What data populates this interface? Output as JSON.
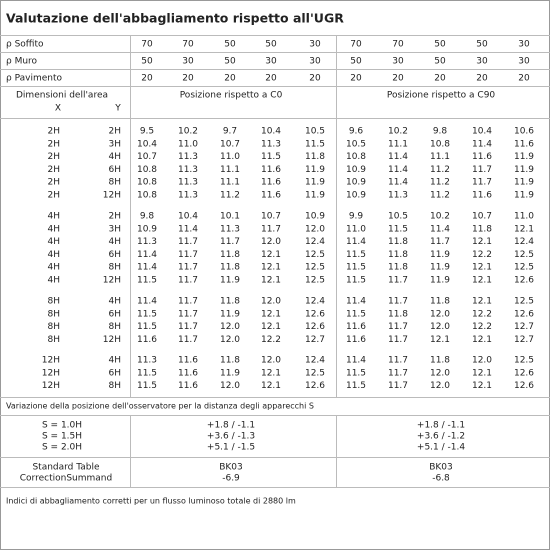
{
  "title": "Valutazione dell'abbagliamento rispetto all'UGR",
  "reflectances": [
    {
      "label": "ρ Soffito",
      "values": [
        "70",
        "70",
        "50",
        "50",
        "30",
        "70",
        "70",
        "50",
        "50",
        "30"
      ]
    },
    {
      "label": "ρ Muro",
      "values": [
        "50",
        "30",
        "50",
        "30",
        "30",
        "50",
        "30",
        "50",
        "30",
        "30"
      ]
    },
    {
      "label": "ρ Pavimento",
      "values": [
        "20",
        "20",
        "20",
        "20",
        "20",
        "20",
        "20",
        "20",
        "20",
        "20"
      ]
    }
  ],
  "header": {
    "dimensions": "Dimensioni dell'area",
    "x": "X",
    "y": "Y",
    "c0": "Posizione rispetto a C0",
    "c90": "Posizione rispetto a C90"
  },
  "groups": [
    {
      "rows": [
        {
          "x": "2H",
          "y": "2H",
          "values": [
            "9.5",
            "10.2",
            "9.7",
            "10.4",
            "10.5",
            "9.6",
            "10.2",
            "9.8",
            "10.4",
            "10.6"
          ]
        },
        {
          "x": "2H",
          "y": "3H",
          "values": [
            "10.4",
            "11.0",
            "10.7",
            "11.3",
            "11.5",
            "10.5",
            "11.1",
            "10.8",
            "11.4",
            "11.6"
          ]
        },
        {
          "x": "2H",
          "y": "4H",
          "values": [
            "10.7",
            "11.3",
            "11.0",
            "11.5",
            "11.8",
            "10.8",
            "11.4",
            "11.1",
            "11.6",
            "11.9"
          ]
        },
        {
          "x": "2H",
          "y": "6H",
          "values": [
            "10.8",
            "11.3",
            "11.1",
            "11.6",
            "11.9",
            "10.9",
            "11.4",
            "11.2",
            "11.7",
            "11.9"
          ]
        },
        {
          "x": "2H",
          "y": "8H",
          "values": [
            "10.8",
            "11.3",
            "11.1",
            "11.6",
            "11.9",
            "10.9",
            "11.4",
            "11.2",
            "11.7",
            "11.9"
          ]
        },
        {
          "x": "2H",
          "y": "12H",
          "values": [
            "10.8",
            "11.3",
            "11.2",
            "11.6",
            "11.9",
            "10.9",
            "11.3",
            "11.2",
            "11.6",
            "11.9"
          ]
        }
      ]
    },
    {
      "rows": [
        {
          "x": "4H",
          "y": "2H",
          "values": [
            "9.8",
            "10.4",
            "10.1",
            "10.7",
            "10.9",
            "9.9",
            "10.5",
            "10.2",
            "10.7",
            "11.0"
          ]
        },
        {
          "x": "4H",
          "y": "3H",
          "values": [
            "10.9",
            "11.4",
            "11.3",
            "11.7",
            "12.0",
            "11.0",
            "11.5",
            "11.4",
            "11.8",
            "12.1"
          ]
        },
        {
          "x": "4H",
          "y": "4H",
          "values": [
            "11.3",
            "11.7",
            "11.7",
            "12.0",
            "12.4",
            "11.4",
            "11.8",
            "11.7",
            "12.1",
            "12.4"
          ]
        },
        {
          "x": "4H",
          "y": "6H",
          "values": [
            "11.4",
            "11.7",
            "11.8",
            "12.1",
            "12.5",
            "11.5",
            "11.8",
            "11.9",
            "12.2",
            "12.5"
          ]
        },
        {
          "x": "4H",
          "y": "8H",
          "values": [
            "11.4",
            "11.7",
            "11.8",
            "12.1",
            "12.5",
            "11.5",
            "11.8",
            "11.9",
            "12.1",
            "12.5"
          ]
        },
        {
          "x": "4H",
          "y": "12H",
          "values": [
            "11.5",
            "11.7",
            "11.9",
            "12.1",
            "12.5",
            "11.5",
            "11.7",
            "11.9",
            "12.1",
            "12.6"
          ]
        }
      ]
    },
    {
      "rows": [
        {
          "x": "8H",
          "y": "4H",
          "values": [
            "11.4",
            "11.7",
            "11.8",
            "12.0",
            "12.4",
            "11.4",
            "11.7",
            "11.8",
            "12.1",
            "12.5"
          ]
        },
        {
          "x": "8H",
          "y": "6H",
          "values": [
            "11.5",
            "11.7",
            "11.9",
            "12.1",
            "12.6",
            "11.5",
            "11.8",
            "12.0",
            "12.2",
            "12.6"
          ]
        },
        {
          "x": "8H",
          "y": "8H",
          "values": [
            "11.5",
            "11.7",
            "12.0",
            "12.1",
            "12.6",
            "11.6",
            "11.7",
            "12.0",
            "12.2",
            "12.7"
          ]
        },
        {
          "x": "8H",
          "y": "12H",
          "values": [
            "11.6",
            "11.7",
            "12.0",
            "12.2",
            "12.7",
            "11.6",
            "11.7",
            "12.1",
            "12.1",
            "12.7"
          ]
        }
      ]
    },
    {
      "rows": [
        {
          "x": "12H",
          "y": "4H",
          "values": [
            "11.3",
            "11.6",
            "11.8",
            "12.0",
            "12.4",
            "11.4",
            "11.7",
            "11.8",
            "12.0",
            "12.5"
          ]
        },
        {
          "x": "12H",
          "y": "6H",
          "values": [
            "11.5",
            "11.6",
            "11.9",
            "12.1",
            "12.5",
            "11.5",
            "11.7",
            "12.0",
            "12.1",
            "12.6"
          ]
        },
        {
          "x": "12H",
          "y": "8H",
          "values": [
            "11.5",
            "11.6",
            "12.0",
            "12.1",
            "12.6",
            "11.5",
            "11.7",
            "12.0",
            "12.1",
            "12.6"
          ]
        }
      ]
    }
  ],
  "variation": {
    "title": "Variazione della posizione dell'osservatore per la distanza degli apparecchi S",
    "rows": [
      {
        "s": "S = 1.0H",
        "c0": "+1.8 / -1.1",
        "c90": "+1.8 / -1.1"
      },
      {
        "s": "S = 1.5H",
        "c0": "+3.6 / -1.3",
        "c90": "+3.6 / -1.2"
      },
      {
        "s": "S = 2.0H",
        "c0": "+5.1 / -1.5",
        "c90": "+5.1 / -1.4"
      }
    ]
  },
  "standard": {
    "label1": "Standard Table",
    "label2": "CorrectionSummand",
    "c0": {
      "table": "BK03",
      "summand": "-6.9"
    },
    "c90": {
      "table": "BK03",
      "summand": "-6.8"
    }
  },
  "footer": "Indici di abbagliamento corretti per un flusso luminoso totale di 2880 lm"
}
